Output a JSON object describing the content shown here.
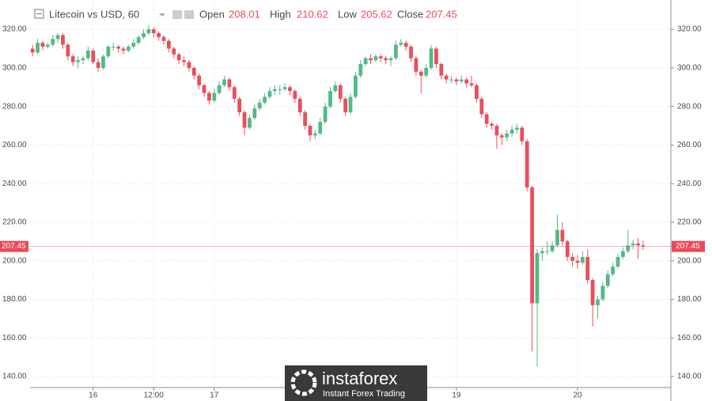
{
  "chart_data": {
    "type": "candlestick",
    "symbol": "Litecoin vs USD, 60",
    "open_label": "Open",
    "high_label": "High",
    "low_label": "Low",
    "close_label": "Close",
    "up_color": "#53b987",
    "down_color": "#eb4d5c",
    "last_price_color": "#e84a5a",
    "grid": true,
    "xlim": [
      -0.5,
      126.5
    ],
    "xticks": [
      {
        "value": 12,
        "label": "16"
      },
      {
        "value": 24,
        "label": "12:00"
      },
      {
        "value": 36,
        "label": "17"
      },
      {
        "value": 84,
        "label": "19"
      },
      {
        "value": 108,
        "label": "20"
      }
    ],
    "ylim": [
      134.3,
      335.2
    ],
    "yticks": [
      {
        "value": 140,
        "label": "140.00"
      },
      {
        "value": 160,
        "label": "160.00"
      },
      {
        "value": 180,
        "label": "180.00"
      },
      {
        "value": 200,
        "label": "200.00"
      },
      {
        "value": 220,
        "label": "220.00"
      },
      {
        "value": 240,
        "label": "240.00"
      },
      {
        "value": 260,
        "label": "260.00"
      },
      {
        "value": 280,
        "label": "280.00"
      },
      {
        "value": 300,
        "label": "300.00"
      },
      {
        "value": 320,
        "label": "320.00"
      }
    ],
    "ohlc": [
      [
        310,
        312,
        306,
        308
      ],
      [
        308,
        315,
        307,
        313
      ],
      [
        313,
        314,
        309,
        311
      ],
      [
        311,
        313,
        310,
        312
      ],
      [
        312,
        317,
        311,
        315
      ],
      [
        315,
        318,
        313,
        317
      ],
      [
        317,
        318,
        310,
        312
      ],
      [
        312,
        313,
        304,
        306
      ],
      [
        306,
        307,
        301,
        303
      ],
      [
        303,
        306,
        300,
        304
      ],
      [
        304,
        306,
        302,
        305
      ],
      [
        305,
        311,
        304,
        309
      ],
      [
        309,
        310,
        302,
        303
      ],
      [
        303,
        305,
        298,
        300
      ],
      [
        300,
        307,
        299,
        306
      ],
      [
        306,
        312,
        305,
        311
      ],
      [
        311,
        313,
        309,
        311
      ],
      [
        311,
        312,
        308,
        310
      ],
      [
        310,
        311,
        307,
        309
      ],
      [
        309,
        312,
        308,
        311
      ],
      [
        311,
        315,
        310,
        313
      ],
      [
        313,
        317,
        312,
        316
      ],
      [
        316,
        320,
        315,
        318
      ],
      [
        318,
        322,
        317,
        320
      ],
      [
        320,
        321,
        316,
        318
      ],
      [
        318,
        319,
        314,
        316
      ],
      [
        316,
        317,
        312,
        314
      ],
      [
        314,
        315,
        308,
        310
      ],
      [
        310,
        311,
        305,
        307
      ],
      [
        307,
        308,
        302,
        304
      ],
      [
        304,
        306,
        301,
        303
      ],
      [
        303,
        304,
        298,
        300
      ],
      [
        300,
        301,
        294,
        296
      ],
      [
        296,
        297,
        289,
        291
      ],
      [
        291,
        292,
        285,
        287
      ],
      [
        287,
        288,
        281,
        283
      ],
      [
        283,
        289,
        282,
        287
      ],
      [
        287,
        293,
        286,
        291
      ],
      [
        291,
        296,
        290,
        294
      ],
      [
        294,
        295,
        288,
        290
      ],
      [
        290,
        291,
        282,
        284
      ],
      [
        284,
        285,
        275,
        277
      ],
      [
        277,
        278,
        265,
        269
      ],
      [
        269,
        276,
        268,
        274
      ],
      [
        274,
        281,
        273,
        279
      ],
      [
        279,
        284,
        278,
        282
      ],
      [
        282,
        287,
        281,
        285
      ],
      [
        285,
        290,
        284,
        288
      ],
      [
        288,
        291,
        286,
        289
      ],
      [
        289,
        291,
        286,
        289
      ],
      [
        289,
        292,
        288,
        290
      ],
      [
        290,
        291,
        286,
        288
      ],
      [
        288,
        289,
        282,
        284
      ],
      [
        284,
        285,
        275,
        277
      ],
      [
        277,
        278,
        268,
        270
      ],
      [
        270,
        271,
        262,
        265
      ],
      [
        265,
        268,
        263,
        266
      ],
      [
        266,
        274,
        265,
        272
      ],
      [
        272,
        282,
        271,
        280
      ],
      [
        280,
        290,
        279,
        288
      ],
      [
        288,
        293,
        287,
        291
      ],
      [
        291,
        292,
        282,
        284
      ],
      [
        284,
        285,
        275,
        277
      ],
      [
        277,
        287,
        276,
        285
      ],
      [
        285,
        298,
        284,
        296
      ],
      [
        296,
        304,
        295,
        302
      ],
      [
        302,
        306,
        301,
        305
      ],
      [
        305,
        307,
        302,
        304
      ],
      [
        304,
        307,
        303,
        306
      ],
      [
        306,
        307,
        303,
        305
      ],
      [
        305,
        306,
        302,
        304
      ],
      [
        304,
        306,
        301,
        305
      ],
      [
        305,
        314,
        304,
        312
      ],
      [
        312,
        315,
        311,
        313
      ],
      [
        313,
        314,
        309,
        311
      ],
      [
        311,
        312,
        303,
        305
      ],
      [
        305,
        306,
        296,
        298
      ],
      [
        298,
        299,
        287,
        296
      ],
      [
        296,
        302,
        295,
        300
      ],
      [
        300,
        312,
        299,
        310
      ],
      [
        310,
        311,
        300,
        302
      ],
      [
        302,
        303,
        294,
        296
      ],
      [
        296,
        297,
        292,
        294
      ],
      [
        294,
        296,
        292,
        294
      ],
      [
        294,
        295,
        291,
        293
      ],
      [
        293,
        296,
        292,
        294
      ],
      [
        294,
        295,
        290,
        292
      ],
      [
        292,
        296,
        290,
        291
      ],
      [
        291,
        292,
        282,
        284
      ],
      [
        284,
        285,
        274,
        276
      ],
      [
        276,
        277,
        269,
        271
      ],
      [
        271,
        272,
        268,
        270
      ],
      [
        270,
        271,
        258,
        265
      ],
      [
        265,
        266,
        260,
        264
      ],
      [
        264,
        268,
        262,
        266
      ],
      [
        266,
        270,
        264,
        268
      ],
      [
        268,
        271,
        266,
        269
      ],
      [
        269,
        270,
        260,
        262
      ],
      [
        262,
        263,
        236,
        238
      ],
      [
        238,
        239,
        153,
        178
      ],
      [
        178,
        206,
        145,
        204
      ],
      [
        204,
        207,
        200,
        205
      ],
      [
        205,
        210,
        203,
        205
      ],
      [
        205,
        210,
        204,
        208
      ],
      [
        208,
        224,
        207,
        216
      ],
      [
        216,
        220,
        208,
        210
      ],
      [
        210,
        211,
        200,
        202
      ],
      [
        202,
        204,
        197,
        200
      ],
      [
        200,
        203,
        196,
        199
      ],
      [
        199,
        205,
        198,
        202
      ],
      [
        202,
        206,
        188,
        190
      ],
      [
        190,
        191,
        166,
        177
      ],
      [
        177,
        182,
        170,
        180
      ],
      [
        180,
        189,
        179,
        187
      ],
      [
        187,
        195,
        186,
        193
      ],
      [
        193,
        199,
        192,
        197
      ],
      [
        197,
        204,
        196,
        202
      ],
      [
        202,
        207,
        201,
        205
      ],
      [
        205,
        216,
        204,
        208
      ],
      [
        208,
        211,
        206,
        209
      ],
      [
        209,
        212,
        201,
        208
      ],
      [
        208.01,
        210.62,
        205.62,
        207.45
      ]
    ],
    "watermark": {
      "brand": "instaforex",
      "tagline": "Instant Forex Trading"
    }
  }
}
